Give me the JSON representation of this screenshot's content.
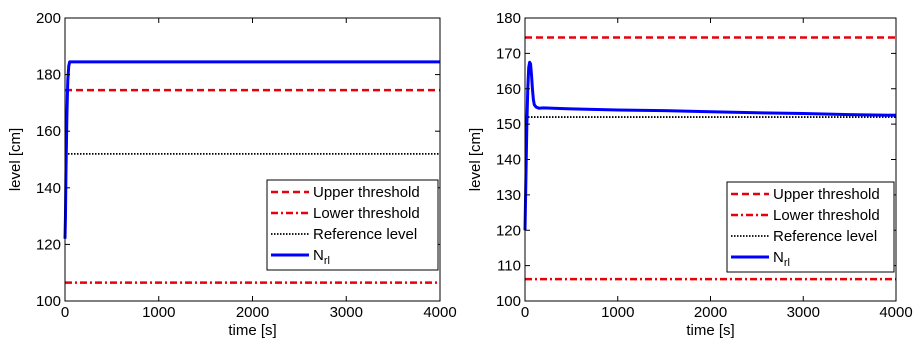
{
  "chart_data": [
    {
      "type": "line",
      "xlabel": "time [s]",
      "ylabel": "level [cm]",
      "xlim": [
        0,
        4000
      ],
      "ylim": [
        100,
        200
      ],
      "xticks": [
        0,
        1000,
        2000,
        3000,
        4000
      ],
      "yticks": [
        100,
        120,
        140,
        160,
        180,
        200
      ],
      "xtick_labels": [
        "0",
        "1000",
        "2000",
        "3000",
        "4000"
      ],
      "ytick_labels": [
        "100",
        "120",
        "140",
        "160",
        "180",
        "200"
      ],
      "grid": false,
      "legend_position": "bottom-right",
      "series": [
        {
          "name": "Upper threshold",
          "style": "dashed",
          "color": "#e8000b",
          "x": [
            0,
            4000
          ],
          "y": [
            174.5,
            174.5
          ]
        },
        {
          "name": "Lower threshold",
          "style": "dash-dot",
          "color": "#e8000b",
          "x": [
            0,
            4000
          ],
          "y": [
            106.5,
            106.5
          ]
        },
        {
          "name": "Reference level",
          "style": "dotted",
          "color": "#000000",
          "x": [
            0,
            4000
          ],
          "y": [
            152,
            152
          ]
        },
        {
          "name": "N",
          "name_subscript": "rl",
          "style": "solid",
          "color": "#0000ff",
          "x": [
            0,
            5,
            10,
            15,
            20,
            25,
            30,
            40,
            50,
            70,
            100,
            200,
            500,
            1000,
            2000,
            3000,
            4000
          ],
          "y": [
            122,
            130,
            145,
            155,
            165,
            172,
            178,
            183,
            184.5,
            184.5,
            184.5,
            184.5,
            184.5,
            184.5,
            184.5,
            184.5,
            184.5
          ]
        }
      ]
    },
    {
      "type": "line",
      "xlabel": "time [s]",
      "ylabel": "level [cm]",
      "xlim": [
        0,
        4000
      ],
      "ylim": [
        100,
        180
      ],
      "xticks": [
        0,
        1000,
        2000,
        3000,
        4000
      ],
      "yticks": [
        100,
        110,
        120,
        130,
        140,
        150,
        160,
        170,
        180
      ],
      "xtick_labels": [
        "0",
        "1000",
        "2000",
        "3000",
        "4000"
      ],
      "ytick_labels": [
        "100",
        "110",
        "120",
        "130",
        "140",
        "150",
        "160",
        "170",
        "180"
      ],
      "grid": false,
      "legend_position": "bottom-right",
      "series": [
        {
          "name": "Upper threshold",
          "style": "dashed",
          "color": "#e8000b",
          "x": [
            0,
            4000
          ],
          "y": [
            174.5,
            174.5
          ]
        },
        {
          "name": "Lower threshold",
          "style": "dash-dot",
          "color": "#e8000b",
          "x": [
            0,
            4000
          ],
          "y": [
            106.2,
            106.2
          ]
        },
        {
          "name": "Reference level",
          "style": "dotted",
          "color": "#000000",
          "x": [
            0,
            4000
          ],
          "y": [
            152,
            152
          ]
        },
        {
          "name": "N",
          "name_subscript": "rl",
          "style": "solid",
          "color": "#0000ff",
          "x": [
            0,
            10,
            20,
            30,
            40,
            50,
            60,
            70,
            80,
            90,
            100,
            120,
            150,
            200,
            300,
            500,
            1000,
            1500,
            2000,
            2500,
            3000,
            3500,
            4000
          ],
          "y": [
            120,
            135,
            150,
            160,
            166,
            167.5,
            167,
            164,
            160,
            157,
            155.5,
            154.8,
            154.5,
            154.6,
            154.5,
            154.3,
            154,
            153.8,
            153.5,
            153.2,
            153,
            152.7,
            152.5
          ]
        }
      ]
    }
  ]
}
